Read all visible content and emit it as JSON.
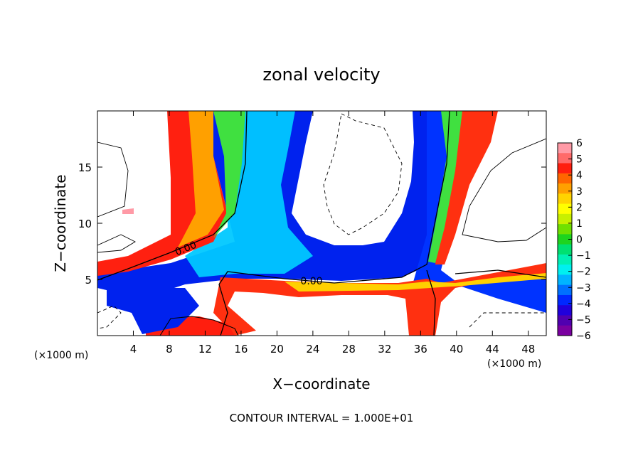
{
  "chart_data": {
    "type": "heatmap",
    "title": "zonal velocity",
    "xlabel": "X−coordinate",
    "ylabel": "Z−coordinate",
    "x_unit_left": "(×1000 m)",
    "x_unit_right": "(×1000 m)",
    "footer": "CONTOUR INTERVAL = 1.000E+01",
    "xlim": [
      0,
      50
    ],
    "ylim": [
      0,
      20
    ],
    "x_ticks": [
      "4",
      "8",
      "12",
      "16",
      "20",
      "24",
      "28",
      "32",
      "36",
      "40",
      "44",
      "48"
    ],
    "y_ticks": [
      "5",
      "10",
      "15"
    ],
    "contour_labels": [
      "0.00",
      "0.00"
    ],
    "colorbar": {
      "min": -6,
      "max": 6,
      "labels": [
        "6",
        "5",
        "4",
        "3",
        "2",
        "1",
        "0",
        "−1",
        "−2",
        "−3",
        "−4",
        "−5",
        "−6"
      ],
      "colors": [
        "#ff9aa6",
        "#ff6a6a",
        "#ff1e0e",
        "#ff6600",
        "#ffa000",
        "#ffd400",
        "#ffff00",
        "#c8f000",
        "#70e000",
        "#1ed41e",
        "#00e070",
        "#00f0b4",
        "#00f0f0",
        "#00b4ff",
        "#0070ff",
        "#0028ff",
        "#2000dc",
        "#5000b0",
        "#7a00a0"
      ]
    }
  }
}
